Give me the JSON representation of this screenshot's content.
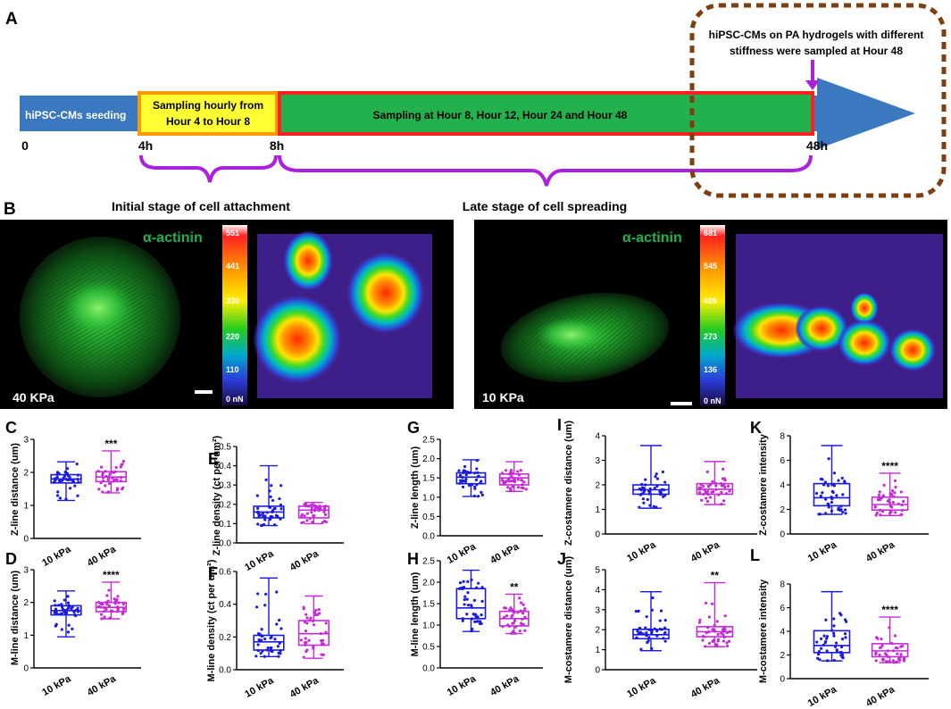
{
  "panel_a": {
    "letter": "A",
    "note_line1": "hiPSC-CMs on PA hydrogels with different",
    "note_line2": "stiffness were sampled at Hour 48",
    "seg_seeding": "hiPSC-CMs seeding",
    "seg_hourly_line1": "Sampling hourly from",
    "seg_hourly_line2": "Hour 4 to Hour 8",
    "seg_main": "Sampling at Hour 8, Hour 12, Hour 24 and Hour 48",
    "ticks": [
      "0",
      "4h",
      "8h",
      "48h"
    ],
    "colors": {
      "arrow": "#3a78c0",
      "hourly_fill": "#ffff33",
      "hourly_border": "#ff9900",
      "main_fill": "#22b14c",
      "main_border": "#ff2020",
      "brace": "#aa22dd",
      "dashed": "#7b3f12"
    }
  },
  "panel_b": {
    "letter": "B",
    "left_title": "Initial stage of cell attachment",
    "right_title": "Late stage of cell spreading",
    "stain": "α-actinin",
    "left_stiffness": "40 KPa",
    "right_stiffness": "10 KPa",
    "left_scale": [
      "551",
      "441",
      "330",
      "220",
      "110",
      "0 nN"
    ],
    "right_scale": [
      "681",
      "545",
      "409",
      "273",
      "136",
      "0 nN"
    ]
  },
  "chart_data": [
    {
      "panel": "C",
      "type": "box",
      "ylabel": "Z-line distance (um)",
      "ylim": [
        0,
        3
      ],
      "yticks": [
        "0",
        "1",
        "2",
        "3"
      ],
      "categories": [
        "10 kPa",
        "40 kPa"
      ],
      "significance": "***",
      "series": [
        {
          "name": "10 kPa",
          "color": "#1a1adf",
          "min": 1.15,
          "q1": 1.68,
          "median": 1.8,
          "q3": 1.93,
          "max": 2.32
        },
        {
          "name": "40 kPa",
          "color": "#c42bd6",
          "min": 1.38,
          "q1": 1.72,
          "median": 1.86,
          "q3": 2.02,
          "max": 2.65
        }
      ]
    },
    {
      "panel": "D",
      "type": "box",
      "ylabel": "M-line distance (um)",
      "ylim": [
        0,
        3
      ],
      "yticks": [
        "0",
        "1",
        "2",
        "3"
      ],
      "categories": [
        "10 kPa",
        "40 kPa"
      ],
      "significance": "****",
      "series": [
        {
          "name": "10 kPa",
          "color": "#1a1adf",
          "min": 0.95,
          "q1": 1.62,
          "median": 1.75,
          "q3": 1.9,
          "max": 2.35
        },
        {
          "name": "40 kPa",
          "color": "#c42bd6",
          "min": 1.5,
          "q1": 1.72,
          "median": 1.85,
          "q3": 2.0,
          "max": 2.62
        }
      ]
    },
    {
      "panel": "E",
      "type": "box",
      "ylabel": "Z-line density (ct per um²)",
      "ylim": [
        0,
        0.5
      ],
      "yticks": [
        "0.0",
        "0.1",
        "0.2",
        "0.3",
        "0.4",
        "0.5"
      ],
      "categories": [
        "10 kPa",
        "40 kPa"
      ],
      "significance": "",
      "series": [
        {
          "name": "10 kPa",
          "color": "#1a1adf",
          "min": 0.09,
          "q1": 0.13,
          "median": 0.16,
          "q3": 0.19,
          "max": 0.4
        },
        {
          "name": "40 kPa",
          "color": "#c42bd6",
          "min": 0.1,
          "q1": 0.13,
          "median": 0.17,
          "q3": 0.19,
          "max": 0.21
        }
      ]
    },
    {
      "panel": "F",
      "type": "box",
      "ylabel": "M-line density (ct per um²)",
      "ylim": [
        0,
        0.6
      ],
      "yticks": [
        "0.0",
        "0.2",
        "0.4",
        "0.6"
      ],
      "categories": [
        "10 kPa",
        "40 kPa"
      ],
      "significance": "",
      "series": [
        {
          "name": "10 kPa",
          "color": "#1a1adf",
          "min": 0.08,
          "q1": 0.12,
          "median": 0.17,
          "q3": 0.21,
          "max": 0.56
        },
        {
          "name": "40 kPa",
          "color": "#c42bd6",
          "min": 0.07,
          "q1": 0.15,
          "median": 0.22,
          "q3": 0.3,
          "max": 0.45
        }
      ]
    },
    {
      "panel": "G",
      "type": "box",
      "ylabel": "Z-line length (um)",
      "ylim": [
        0,
        2.5
      ],
      "yticks": [
        "0.0",
        "0.5",
        "1.0",
        "1.5",
        "2.0",
        "2.5"
      ],
      "categories": [
        "10 kPa",
        "40 kPa"
      ],
      "significance": "",
      "series": [
        {
          "name": "10 kPa",
          "color": "#1a1adf",
          "min": 1.02,
          "q1": 1.35,
          "median": 1.52,
          "q3": 1.63,
          "max": 1.97
        },
        {
          "name": "40 kPa",
          "color": "#c42bd6",
          "min": 1.15,
          "q1": 1.32,
          "median": 1.5,
          "q3": 1.6,
          "max": 1.92
        }
      ]
    },
    {
      "panel": "H",
      "type": "box",
      "ylabel": "M-line length (um)",
      "ylim": [
        0,
        2.5
      ],
      "yticks": [
        "0.0",
        "0.5",
        "1.0",
        "1.5",
        "2.0",
        "2.5"
      ],
      "categories": [
        "10 kPa",
        "40 kPa"
      ],
      "significance": "**",
      "series": [
        {
          "name": "10 kPa",
          "color": "#1a1adf",
          "min": 0.85,
          "q1": 1.15,
          "median": 1.4,
          "q3": 1.85,
          "max": 2.28
        },
        {
          "name": "40 kPa",
          "color": "#c42bd6",
          "min": 0.8,
          "q1": 0.98,
          "median": 1.15,
          "q3": 1.32,
          "max": 1.72
        }
      ]
    },
    {
      "panel": "I",
      "type": "box",
      "ylabel": "Z-costamere distance (um)",
      "ylim": [
        0,
        4
      ],
      "yticks": [
        "0",
        "1",
        "2",
        "3",
        "4"
      ],
      "categories": [
        "10 kPa",
        "40 kPa"
      ],
      "significance": "",
      "series": [
        {
          "name": "10 kPa",
          "color": "#1a1adf",
          "min": 1.05,
          "q1": 1.62,
          "median": 1.8,
          "q3": 2.0,
          "max": 3.6
        },
        {
          "name": "40 kPa",
          "color": "#c42bd6",
          "min": 1.2,
          "q1": 1.62,
          "median": 1.82,
          "q3": 2.05,
          "max": 2.95
        }
      ]
    },
    {
      "panel": "J",
      "type": "box",
      "ylabel": "M-costamere distance (um)",
      "ylim": [
        0,
        5
      ],
      "yticks": [
        "0",
        "1",
        "2",
        "3",
        "4",
        "5"
      ],
      "categories": [
        "10 kPa",
        "40 kPa"
      ],
      "significance": "**",
      "series": [
        {
          "name": "10 kPa",
          "color": "#1a1adf",
          "min": 0.95,
          "q1": 1.55,
          "median": 1.75,
          "q3": 2.02,
          "max": 3.9
        },
        {
          "name": "40 kPa",
          "color": "#c42bd6",
          "min": 1.15,
          "q1": 1.65,
          "median": 1.9,
          "q3": 2.15,
          "max": 4.35
        }
      ]
    },
    {
      "panel": "K",
      "type": "box",
      "ylabel": "Z-costamere intensity",
      "ylim": [
        0,
        8
      ],
      "yticks": [
        "0",
        "2",
        "4",
        "6",
        "8"
      ],
      "categories": [
        "10 kPa",
        "40 kPa"
      ],
      "significance": "****",
      "series": [
        {
          "name": "10 kPa",
          "color": "#1a1adf",
          "min": 1.6,
          "q1": 2.3,
          "median": 2.95,
          "q3": 4.1,
          "max": 7.2
        },
        {
          "name": "40 kPa",
          "color": "#c42bd6",
          "min": 1.5,
          "q1": 1.95,
          "median": 2.4,
          "q3": 3.0,
          "max": 4.95
        }
      ]
    },
    {
      "panel": "L",
      "type": "box",
      "ylabel": "M-costamere intensity",
      "ylim": [
        0,
        8
      ],
      "yticks": [
        "0",
        "2",
        "4",
        "6",
        "8"
      ],
      "categories": [
        "10 kPa",
        "40 kPa"
      ],
      "significance": "****",
      "series": [
        {
          "name": "10 kPa",
          "color": "#1a1adf",
          "min": 1.5,
          "q1": 2.2,
          "median": 2.8,
          "q3": 4.05,
          "max": 7.35
        },
        {
          "name": "40 kPa",
          "color": "#c42bd6",
          "min": 1.35,
          "q1": 1.85,
          "median": 2.35,
          "q3": 2.95,
          "max": 5.2
        }
      ]
    }
  ]
}
